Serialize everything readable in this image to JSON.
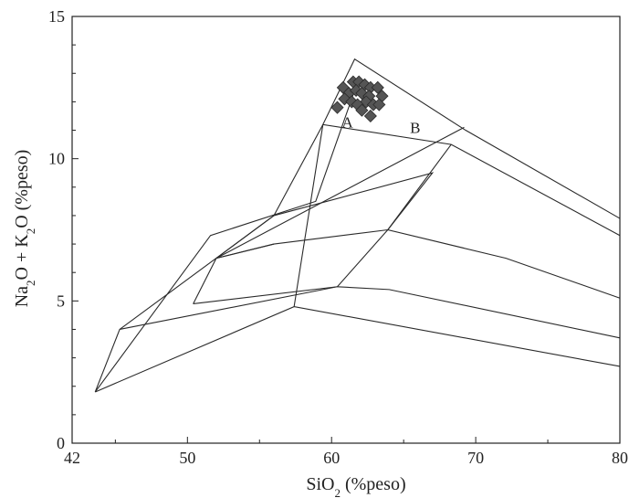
{
  "chart_data": {
    "type": "scatter",
    "title": "",
    "xlabel": {
      "before": "SiO",
      "sub": "2",
      "after": " (%peso)"
    },
    "ylabel": {
      "p1": "Na",
      "s1": "2",
      "p2": "O + K",
      "s2": "2",
      "p3": "O (%peso)"
    },
    "xlim": [
      42,
      80
    ],
    "ylim": [
      0,
      15
    ],
    "x_ticks": [
      42,
      50,
      60,
      70,
      80
    ],
    "x_tick_labels": [
      "42",
      "50",
      "60",
      "70",
      "80"
    ],
    "y_ticks": [
      0,
      5,
      10,
      15
    ],
    "y_tick_labels": [
      "0",
      "5",
      "10",
      "15"
    ],
    "grid": false,
    "field_lines": [
      [
        [
          43.6,
          1.8
        ],
        [
          57.4,
          4.8
        ],
        [
          80,
          2.7
        ]
      ],
      [
        [
          43.6,
          1.8
        ],
        [
          45.3,
          4.0
        ],
        [
          56.0,
          8.0
        ],
        [
          59.4,
          11.2
        ],
        [
          68.3,
          10.5
        ],
        [
          80,
          7.3
        ]
      ],
      [
        [
          43.6,
          1.8
        ],
        [
          51.6,
          7.3
        ],
        [
          58.9,
          8.5
        ],
        [
          61.6,
          12.4
        ]
      ],
      [
        [
          45.3,
          4.0
        ],
        [
          60.4,
          5.5
        ],
        [
          64.0,
          5.4
        ],
        [
          80,
          3.7
        ]
      ],
      [
        [
          50.4,
          4.9
        ],
        [
          60.4,
          5.5
        ],
        [
          63.9,
          7.5
        ],
        [
          68.3,
          10.5
        ]
      ],
      [
        [
          52.0,
          6.5
        ],
        [
          56.0,
          8.0
        ],
        [
          67.0,
          9.5
        ],
        [
          63.9,
          7.5
        ],
        [
          72.1,
          6.5
        ],
        [
          80,
          5.1
        ]
      ],
      [
        [
          50.4,
          4.9
        ],
        [
          52.0,
          6.5
        ],
        [
          56.0,
          7.0
        ],
        [
          63.9,
          7.5
        ]
      ],
      [
        [
          57.4,
          4.8
        ],
        [
          59.4,
          11.2
        ],
        [
          61.6,
          13.5
        ],
        [
          69.3,
          11.0
        ],
        [
          80,
          7.9
        ]
      ],
      [
        [
          56.0,
          7.0
        ],
        [
          52.0,
          6.5
        ],
        [
          69.2,
          11.1
        ]
      ]
    ],
    "field_labels": [
      {
        "text": "A",
        "x": 61.1,
        "y": 11.1
      },
      {
        "text": "B",
        "x": 65.8,
        "y": 10.9
      }
    ],
    "points": [
      [
        61.5,
        12.7
      ],
      [
        61.9,
        12.7
      ],
      [
        62.3,
        12.6
      ],
      [
        60.8,
        12.5
      ],
      [
        62.7,
        12.5
      ],
      [
        63.2,
        12.5
      ],
      [
        61.2,
        12.3
      ],
      [
        61.7,
        12.4
      ],
      [
        62.1,
        12.3
      ],
      [
        62.6,
        12.2
      ],
      [
        63.5,
        12.2
      ],
      [
        60.9,
        12.1
      ],
      [
        61.4,
        12.0
      ],
      [
        62.4,
        12.0
      ],
      [
        62.9,
        11.9
      ],
      [
        63.3,
        11.9
      ],
      [
        61.8,
        11.9
      ],
      [
        60.4,
        11.8
      ],
      [
        62.1,
        11.7
      ],
      [
        62.7,
        11.5
      ]
    ]
  }
}
